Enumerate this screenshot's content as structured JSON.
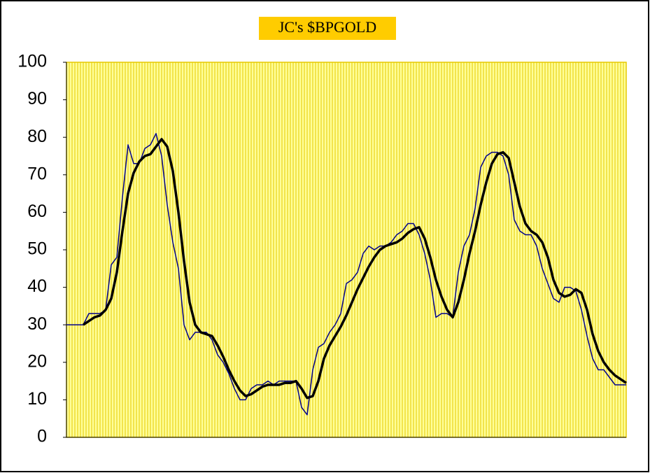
{
  "chart_data": {
    "type": "line",
    "title": "JC's $BPGOLD",
    "ylim": [
      0,
      100
    ],
    "yticks": [
      0,
      10,
      20,
      30,
      40,
      50,
      60,
      70,
      80,
      90,
      100
    ],
    "grid": true,
    "background": "#ffff99",
    "title_background": "#ffcc00",
    "series": [
      {
        "name": "$BPGOLD",
        "color": "#00008b",
        "values": [
          30,
          30,
          30,
          30,
          33,
          33,
          33,
          34,
          46,
          48,
          64,
          78,
          73,
          73,
          77,
          78,
          81,
          75,
          62,
          52,
          45,
          30,
          26,
          28,
          28,
          28,
          26,
          22,
          20,
          17,
          13,
          10,
          10,
          13,
          14,
          14,
          15,
          14,
          15,
          15,
          15,
          15,
          8,
          6,
          18,
          24,
          25,
          28,
          30,
          33,
          41,
          42,
          44,
          49,
          51,
          50,
          51,
          51,
          52,
          54,
          55,
          57,
          57,
          54,
          49,
          42,
          32,
          33,
          33,
          32,
          44,
          51,
          54,
          61,
          72,
          75,
          76,
          76,
          75,
          70,
          58,
          55,
          54,
          54,
          51,
          45,
          41,
          37,
          36,
          40,
          40,
          39,
          34,
          27,
          21,
          18,
          18,
          16,
          14,
          14,
          14
        ]
      },
      {
        "name": "Smoothed",
        "color": "#000000",
        "values": [
          null,
          null,
          null,
          30,
          31,
          32,
          32.5,
          34,
          37,
          44,
          55,
          65,
          70.5,
          73.5,
          75,
          75.5,
          77.5,
          79.5,
          77.5,
          71,
          60,
          47,
          36,
          30,
          28,
          27.5,
          27,
          24.5,
          21.5,
          18,
          15,
          12.5,
          11,
          11.5,
          12.5,
          13.5,
          14,
          14,
          14,
          14.5,
          14.5,
          15,
          13,
          10.5,
          11,
          15,
          21,
          24.5,
          27,
          29.5,
          32.5,
          36,
          39.5,
          42.5,
          45.5,
          48,
          50,
          51,
          51.5,
          52,
          53,
          54.5,
          55.5,
          56,
          53,
          48,
          42,
          37.5,
          34,
          32,
          36,
          42,
          49,
          55,
          62,
          68,
          73,
          75.5,
          76,
          74.5,
          68,
          61.5,
          57,
          55,
          54,
          52,
          48,
          42,
          38.5,
          37.5,
          38,
          39.5,
          38.5,
          34,
          27.5,
          23,
          20,
          18,
          16.5,
          15.5,
          14.5
        ]
      }
    ]
  }
}
